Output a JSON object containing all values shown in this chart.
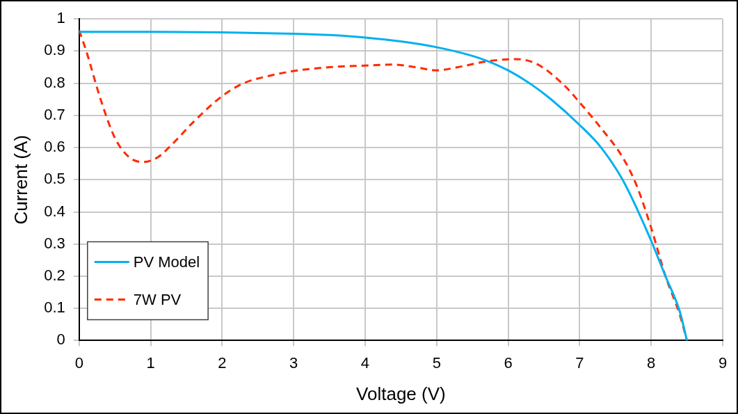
{
  "chart_data": {
    "type": "line",
    "xlabel": "Voltage (V)",
    "ylabel": "Current (A)",
    "xlim": [
      0,
      9
    ],
    "xticks": [
      0,
      1,
      2,
      3,
      4,
      5,
      6,
      7,
      8,
      9
    ],
    "ylim": [
      0,
      1
    ],
    "yticks": [
      0,
      0.1,
      0.2,
      0.3,
      0.4,
      0.5,
      0.6,
      0.7,
      0.8,
      0.9,
      1
    ],
    "grid": true,
    "legend": "bottom left",
    "marker": "none",
    "series": [
      {
        "name": "PV Model",
        "color": "#00b0f0",
        "line_style": "solid",
        "x": [
          0,
          1,
          2,
          3,
          3.5,
          4,
          4.5,
          5,
          5.5,
          5.7,
          6,
          6.3,
          6.6,
          7,
          7.3,
          7.6,
          7.8,
          8,
          8.2,
          8.4,
          8.5
        ],
        "values": [
          0.96,
          0.96,
          0.958,
          0.954,
          0.95,
          0.942,
          0.93,
          0.912,
          0.885,
          0.87,
          0.84,
          0.8,
          0.75,
          0.67,
          0.6,
          0.5,
          0.41,
          0.31,
          0.2,
          0.09,
          0
        ]
      },
      {
        "name": "7W PV",
        "color": "#ff2a00",
        "line_style": "dashed",
        "x": [
          0,
          0.1,
          0.3,
          0.5,
          0.7,
          0.9,
          1.1,
          1.3,
          1.6,
          2,
          2.3,
          2.7,
          3,
          3.5,
          4,
          4.4,
          4.7,
          5,
          5.3,
          5.7,
          6.1,
          6.4,
          6.8,
          7,
          7.3,
          7.6,
          7.8,
          8,
          8.2,
          8.4,
          8.5
        ],
        "values": [
          0.965,
          0.9,
          0.75,
          0.63,
          0.57,
          0.555,
          0.57,
          0.61,
          0.68,
          0.76,
          0.8,
          0.825,
          0.838,
          0.85,
          0.855,
          0.858,
          0.85,
          0.84,
          0.85,
          0.868,
          0.875,
          0.86,
          0.79,
          0.74,
          0.66,
          0.57,
          0.48,
          0.35,
          0.2,
          0.08,
          0
        ]
      }
    ]
  }
}
